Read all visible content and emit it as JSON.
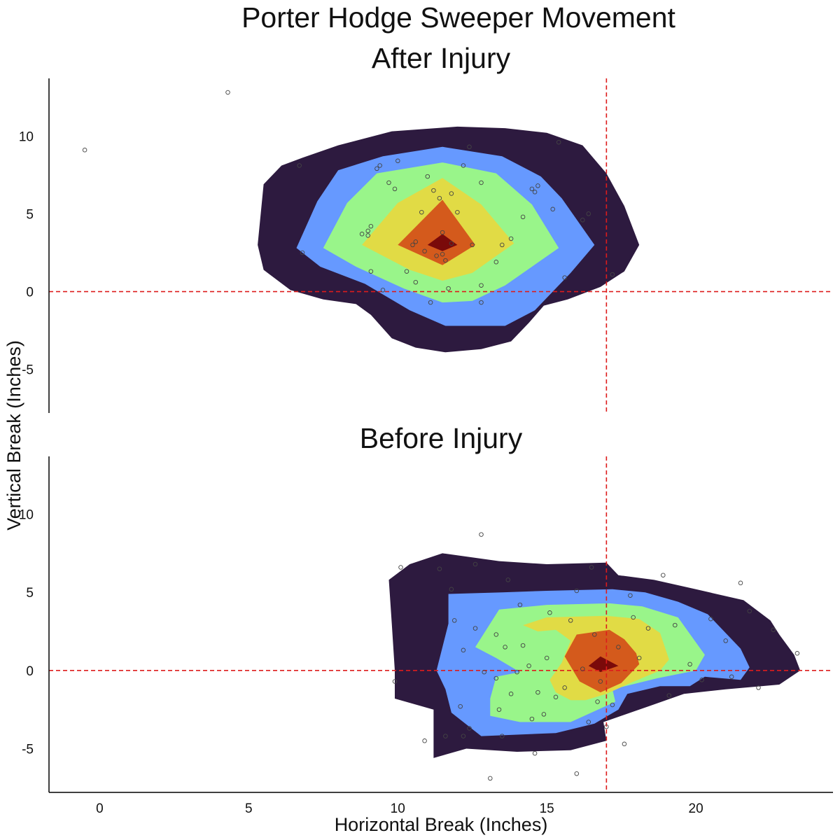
{
  "title": "Porter Hodge Sweeper Movement",
  "chart_data": {
    "type": "scatter",
    "subtype": "density contour with points",
    "title": "Porter Hodge Sweeper Movement",
    "xlabel": "Horizontal Break (Inches)",
    "ylabel": "Vertical Break (Inches)",
    "xlim": [
      -1.7,
      24.6
    ],
    "ylim": [
      -7.8,
      13.7
    ],
    "xticks": [
      0,
      5,
      10,
      15,
      20
    ],
    "yticks": [
      -5,
      0,
      5,
      10
    ],
    "reference_lines": {
      "vertical_x": 17,
      "horizontal_y": 0,
      "color": "#dd1c1c",
      "style": "dashed"
    },
    "contour_colors": [
      "#2d1a3f",
      "#6699ff",
      "#99f58a",
      "#e1db45",
      "#d45a1c",
      "#7a0a0a"
    ],
    "point_color": "#444444",
    "facets": [
      {
        "title": "After Injury",
        "contours": [
          [
            [
              5.3,
              3.0
            ],
            [
              5.5,
              6.9
            ],
            [
              6.1,
              8.1
            ],
            [
              6.8,
              8.6
            ],
            [
              8.0,
              9.4
            ],
            [
              9.8,
              10.3
            ],
            [
              12.0,
              10.6
            ],
            [
              13.6,
              10.5
            ],
            [
              15.0,
              10.2
            ],
            [
              16.2,
              9.4
            ],
            [
              17.0,
              7.6
            ],
            [
              17.6,
              5.5
            ],
            [
              18.1,
              3.0
            ],
            [
              17.6,
              1.3
            ],
            [
              16.8,
              0.3
            ],
            [
              15.7,
              -0.5
            ],
            [
              14.9,
              -0.9
            ],
            [
              14.4,
              -2.0
            ],
            [
              13.8,
              -3.2
            ],
            [
              12.8,
              -3.7
            ],
            [
              11.6,
              -3.9
            ],
            [
              10.6,
              -3.6
            ],
            [
              9.8,
              -3.0
            ],
            [
              9.1,
              -1.5
            ],
            [
              8.6,
              -0.8
            ],
            [
              7.5,
              -0.5
            ],
            [
              6.4,
              0.1
            ],
            [
              5.5,
              1.4
            ]
          ],
          [
            [
              6.6,
              2.8
            ],
            [
              7.3,
              5.8
            ],
            [
              8.0,
              7.8
            ],
            [
              9.5,
              8.7
            ],
            [
              11.5,
              9.3
            ],
            [
              13.5,
              8.7
            ],
            [
              14.8,
              7.4
            ],
            [
              15.5,
              6.0
            ],
            [
              16.6,
              3.0
            ],
            [
              15.8,
              1.2
            ],
            [
              14.6,
              -1.2
            ],
            [
              13.6,
              -2.2
            ],
            [
              11.6,
              -2.2
            ],
            [
              10.4,
              -1.2
            ],
            [
              8.9,
              0.5
            ],
            [
              7.4,
              1.6
            ]
          ],
          [
            [
              7.5,
              2.8
            ],
            [
              8.3,
              5.7
            ],
            [
              9.3,
              7.6
            ],
            [
              11.5,
              8.3
            ],
            [
              13.3,
              7.6
            ],
            [
              14.5,
              5.6
            ],
            [
              15.4,
              2.8
            ],
            [
              13.6,
              0.4
            ],
            [
              12.5,
              -0.6
            ],
            [
              11.5,
              -0.7
            ],
            [
              10.2,
              0.2
            ],
            [
              8.6,
              1.6
            ]
          ],
          [
            [
              8.8,
              3.0
            ],
            [
              10.0,
              5.7
            ],
            [
              11.5,
              7.3
            ],
            [
              12.8,
              5.6
            ],
            [
              13.9,
              3.1
            ],
            [
              12.5,
              1.2
            ],
            [
              11.5,
              0.7
            ],
            [
              10.4,
              1.4
            ]
          ],
          [
            [
              10.0,
              3.0
            ],
            [
              11.5,
              5.9
            ],
            [
              12.6,
              3.0
            ],
            [
              11.5,
              1.7
            ]
          ],
          [
            [
              11.0,
              3.0
            ],
            [
              11.5,
              3.7
            ],
            [
              12.0,
              3.0
            ],
            [
              11.5,
              2.6
            ]
          ]
        ],
        "points": [
          [
            -0.5,
            9.1
          ],
          [
            4.3,
            12.8
          ],
          [
            6.7,
            8.1
          ],
          [
            6.8,
            2.5
          ],
          [
            8.8,
            3.7
          ],
          [
            9.0,
            3.9
          ],
          [
            9.0,
            3.6
          ],
          [
            9.1,
            4.2
          ],
          [
            9.1,
            1.3
          ],
          [
            9.3,
            7.9
          ],
          [
            9.4,
            8.1
          ],
          [
            9.5,
            0.1
          ],
          [
            9.7,
            7.0
          ],
          [
            9.9,
            6.6
          ],
          [
            10.0,
            8.4
          ],
          [
            10.3,
            1.3
          ],
          [
            10.5,
            3.0
          ],
          [
            10.6,
            3.2
          ],
          [
            10.6,
            0.6
          ],
          [
            10.8,
            5.1
          ],
          [
            10.9,
            2.6
          ],
          [
            11.0,
            7.4
          ],
          [
            11.1,
            -0.7
          ],
          [
            11.2,
            6.5
          ],
          [
            11.3,
            2.3
          ],
          [
            11.4,
            6.0
          ],
          [
            11.5,
            3.8
          ],
          [
            11.5,
            2.4
          ],
          [
            11.6,
            2.0
          ],
          [
            11.7,
            0.2
          ],
          [
            11.8,
            6.3
          ],
          [
            11.8,
            3.1
          ],
          [
            12.0,
            5.1
          ],
          [
            12.2,
            8.1
          ],
          [
            12.4,
            9.3
          ],
          [
            12.5,
            3.0
          ],
          [
            12.8,
            7.0
          ],
          [
            12.8,
            -0.7
          ],
          [
            12.8,
            0.4
          ],
          [
            13.3,
            1.9
          ],
          [
            13.5,
            3.0
          ],
          [
            13.8,
            3.4
          ],
          [
            14.2,
            4.8
          ],
          [
            14.5,
            6.6
          ],
          [
            14.6,
            6.4
          ],
          [
            14.7,
            6.8
          ],
          [
            15.2,
            5.3
          ],
          [
            15.4,
            9.6
          ],
          [
            15.6,
            0.9
          ],
          [
            16.2,
            4.6
          ],
          [
            16.4,
            5.0
          ],
          [
            17.2,
            1.1
          ]
        ]
      },
      {
        "title": "Before Injury",
        "contours": [
          [
            [
              9.7,
              5.8
            ],
            [
              10.4,
              6.8
            ],
            [
              11.5,
              7.5
            ],
            [
              13.4,
              7.0
            ],
            [
              15.0,
              6.8
            ],
            [
              17.0,
              6.9
            ],
            [
              17.4,
              6.1
            ],
            [
              18.6,
              5.8
            ],
            [
              20.0,
              5.2
            ],
            [
              21.6,
              4.5
            ],
            [
              22.5,
              3.2
            ],
            [
              22.8,
              2.3
            ],
            [
              23.3,
              1.0
            ],
            [
              23.5,
              0.0
            ],
            [
              22.8,
              -0.9
            ],
            [
              21.0,
              -1.2
            ],
            [
              19.6,
              -1.5
            ],
            [
              18.4,
              -2.3
            ],
            [
              16.9,
              -3.3
            ],
            [
              17.0,
              -4.5
            ],
            [
              15.8,
              -5.1
            ],
            [
              14.0,
              -5.2
            ],
            [
              12.3,
              -5.0
            ],
            [
              11.2,
              -5.6
            ],
            [
              11.2,
              -2.5
            ],
            [
              9.9,
              -1.8
            ],
            [
              9.9,
              0.0
            ],
            [
              9.8,
              3.0
            ]
          ],
          [
            [
              11.3,
              0.0
            ],
            [
              11.7,
              3.0
            ],
            [
              11.7,
              4.9
            ],
            [
              13.5,
              5.0
            ],
            [
              15.0,
              5.1
            ],
            [
              17.2,
              5.2
            ],
            [
              18.3,
              5.0
            ],
            [
              19.4,
              4.4
            ],
            [
              20.4,
              3.6
            ],
            [
              21.5,
              1.4
            ],
            [
              21.8,
              0.2
            ],
            [
              21.5,
              -0.6
            ],
            [
              20.3,
              -0.4
            ],
            [
              19.8,
              -1.0
            ],
            [
              18.8,
              -1.0
            ],
            [
              17.7,
              -1.5
            ],
            [
              17.4,
              -2.5
            ],
            [
              16.6,
              -3.4
            ],
            [
              15.3,
              -4.0
            ],
            [
              12.8,
              -4.2
            ],
            [
              11.8,
              -2.7
            ],
            [
              11.6,
              -1.2
            ]
          ],
          [
            [
              12.6,
              1.5
            ],
            [
              13.4,
              3.9
            ],
            [
              15.0,
              4.2
            ],
            [
              17.1,
              4.3
            ],
            [
              18.2,
              4.1
            ],
            [
              19.4,
              3.4
            ],
            [
              20.3,
              1.0
            ],
            [
              20.0,
              0.0
            ],
            [
              18.7,
              -0.5
            ],
            [
              17.2,
              -1.2
            ],
            [
              17.3,
              -2.0
            ],
            [
              15.8,
              -3.3
            ],
            [
              14.1,
              -3.3
            ],
            [
              13.1,
              -2.9
            ],
            [
              13.1,
              -1.8
            ],
            [
              13.3,
              -0.4
            ],
            [
              14.1,
              -0.1
            ],
            [
              13.3,
              0.8
            ]
          ],
          [
            [
              14.2,
              2.9
            ],
            [
              15.0,
              3.4
            ],
            [
              17.0,
              3.5
            ],
            [
              18.1,
              3.3
            ],
            [
              18.8,
              2.4
            ],
            [
              19.1,
              0.7
            ],
            [
              18.8,
              0.0
            ],
            [
              17.8,
              -0.8
            ],
            [
              17.0,
              -1.5
            ],
            [
              16.3,
              -1.9
            ],
            [
              15.8,
              -1.9
            ],
            [
              15.3,
              -1.4
            ],
            [
              15.1,
              -0.6
            ],
            [
              15.5,
              0.5
            ],
            [
              15.8,
              1.9
            ],
            [
              15.3,
              2.6
            ],
            [
              14.7,
              2.5
            ]
          ],
          [
            [
              15.6,
              0.9
            ],
            [
              16.0,
              2.3
            ],
            [
              17.1,
              2.6
            ],
            [
              17.6,
              2.0
            ],
            [
              18.0,
              1.1
            ],
            [
              18.1,
              0.4
            ],
            [
              17.5,
              -0.8
            ],
            [
              16.8,
              -1.4
            ],
            [
              16.1,
              -0.7
            ]
          ],
          [
            [
              16.4,
              0.3
            ],
            [
              16.8,
              0.9
            ],
            [
              17.4,
              0.3
            ],
            [
              16.8,
              -0.1
            ]
          ]
        ],
        "points": [
          [
            9.9,
            -0.7
          ],
          [
            10.1,
            6.6
          ],
          [
            10.9,
            -4.5
          ],
          [
            11.4,
            6.5
          ],
          [
            11.6,
            -4.2
          ],
          [
            11.8,
            5.2
          ],
          [
            11.9,
            3.2
          ],
          [
            12.1,
            -2.3
          ],
          [
            12.2,
            -4.2
          ],
          [
            12.2,
            1.3
          ],
          [
            12.4,
            -3.7
          ],
          [
            12.6,
            6.8
          ],
          [
            12.6,
            2.7
          ],
          [
            12.8,
            8.7
          ],
          [
            12.9,
            -0.1
          ],
          [
            13.1,
            -6.9
          ],
          [
            13.3,
            2.3
          ],
          [
            13.3,
            -0.5
          ],
          [
            13.4,
            -2.5
          ],
          [
            13.5,
            -4.2
          ],
          [
            13.6,
            1.5
          ],
          [
            13.7,
            5.8
          ],
          [
            13.8,
            -1.5
          ],
          [
            14.0,
            -0.1
          ],
          [
            14.1,
            4.2
          ],
          [
            14.2,
            1.6
          ],
          [
            14.4,
            0.3
          ],
          [
            14.5,
            -3.1
          ],
          [
            14.6,
            -5.3
          ],
          [
            14.7,
            -1.4
          ],
          [
            14.9,
            -2.8
          ],
          [
            15.0,
            0.8
          ],
          [
            15.1,
            3.7
          ],
          [
            15.3,
            -1.7
          ],
          [
            15.6,
            -1.1
          ],
          [
            15.8,
            3.2
          ],
          [
            16.0,
            -6.6
          ],
          [
            16.0,
            5.1
          ],
          [
            16.2,
            0.1
          ],
          [
            16.4,
            -3.3
          ],
          [
            16.5,
            6.6
          ],
          [
            16.6,
            2.3
          ],
          [
            16.7,
            -2.0
          ],
          [
            16.8,
            -0.7
          ],
          [
            17.0,
            -3.6
          ],
          [
            17.2,
            -2.2
          ],
          [
            17.4,
            1.5
          ],
          [
            17.6,
            -4.7
          ],
          [
            17.8,
            4.8
          ],
          [
            17.9,
            3.4
          ],
          [
            18.1,
            0.8
          ],
          [
            18.4,
            2.7
          ],
          [
            18.9,
            6.1
          ],
          [
            19.1,
            -1.6
          ],
          [
            19.3,
            2.9
          ],
          [
            19.8,
            0.4
          ],
          [
            20.2,
            -0.6
          ],
          [
            20.5,
            3.3
          ],
          [
            21.0,
            1.9
          ],
          [
            21.2,
            -0.4
          ],
          [
            21.5,
            5.6
          ],
          [
            21.8,
            3.8
          ],
          [
            22.1,
            -1.1
          ],
          [
            22.6,
            2.6
          ],
          [
            23.4,
            1.1
          ]
        ]
      }
    ]
  }
}
